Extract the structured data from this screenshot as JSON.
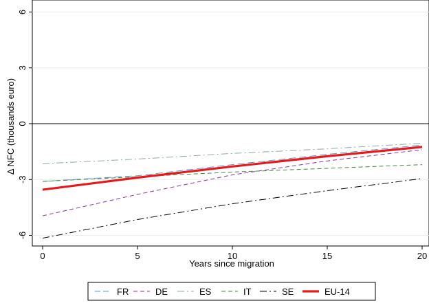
{
  "chart_data": {
    "type": "line",
    "title": "",
    "xlabel": "Years since migration",
    "ylabel": "Δ NFC (thousands euro)",
    "xlim": [
      0,
      20
    ],
    "ylim": [
      -6.2,
      6
    ],
    "xticks": [
      "0",
      "5",
      "10",
      "15",
      "20"
    ],
    "yticks": [
      "-6",
      "-3",
      "0",
      "3",
      "6"
    ],
    "grid": "horizontal",
    "reference_line_y": 0,
    "legend_position": "bottom",
    "x": [
      0,
      5,
      10,
      15,
      20
    ],
    "series": [
      {
        "name": "FR",
        "style": "longdash",
        "color": "#4a9cc7",
        "values": [
          -3.1,
          -2.8,
          -2.2,
          -1.65,
          -1.15
        ]
      },
      {
        "name": "DE",
        "style": "dash",
        "color": "#8e2da6",
        "values": [
          -4.95,
          -3.8,
          -2.75,
          -2.0,
          -1.4
        ]
      },
      {
        "name": "ES",
        "style": "dashdot",
        "color": "#8fa8a8",
        "values": [
          -2.15,
          -1.9,
          -1.6,
          -1.35,
          -1.05
        ]
      },
      {
        "name": "IT",
        "style": "dash",
        "color": "#3a8a3a",
        "values": [
          -3.1,
          -2.85,
          -2.6,
          -2.4,
          -2.2
        ]
      },
      {
        "name": "SE",
        "style": "dashdot",
        "color": "#000000",
        "values": [
          -6.15,
          -5.15,
          -4.3,
          -3.6,
          -2.95
        ]
      },
      {
        "name": "EU-14",
        "style": "solid-thick",
        "color": "#e8191b",
        "values": [
          -3.55,
          -2.9,
          -2.3,
          -1.75,
          -1.25
        ]
      }
    ]
  }
}
